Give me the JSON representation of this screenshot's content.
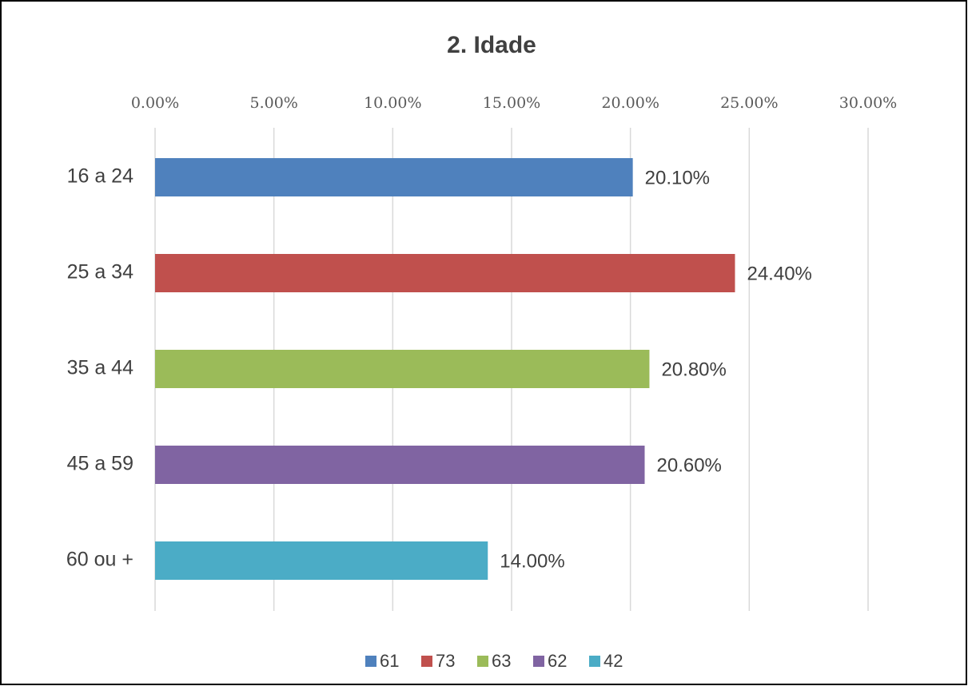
{
  "chart_data": {
    "type": "bar",
    "orientation": "horizontal",
    "title": "2. Idade",
    "categories": [
      "16 a 24",
      "25 a 34",
      "35 a 44",
      "45 a 59",
      "60 ou +"
    ],
    "series": [
      {
        "name": "61",
        "color": "#4f81bd",
        "values": [
          20.1,
          null,
          null,
          null,
          null
        ],
        "value_labels": [
          "20.10%",
          null,
          null,
          null,
          null
        ]
      },
      {
        "name": "73",
        "color": "#c0504d",
        "values": [
          null,
          24.4,
          null,
          null,
          null
        ],
        "value_labels": [
          null,
          "24.40%",
          null,
          null,
          null
        ]
      },
      {
        "name": "63",
        "color": "#9bbb59",
        "values": [
          null,
          null,
          20.8,
          null,
          null
        ],
        "value_labels": [
          null,
          null,
          "20.80%",
          null,
          null
        ]
      },
      {
        "name": "62",
        "color": "#8064a2",
        "values": [
          null,
          null,
          null,
          20.6,
          null
        ],
        "value_labels": [
          null,
          null,
          null,
          "20.60%",
          null
        ]
      },
      {
        "name": "42",
        "color": "#4bacc6",
        "values": [
          null,
          null,
          null,
          null,
          14.0
        ],
        "value_labels": [
          null,
          null,
          null,
          null,
          "14.00%"
        ]
      }
    ],
    "xlim": [
      0,
      30
    ],
    "xticks": [
      {
        "value": 0,
        "label": "0.00%"
      },
      {
        "value": 5,
        "label": "5.00%"
      },
      {
        "value": 10,
        "label": "10.00%"
      },
      {
        "value": 15,
        "label": "15.00%"
      },
      {
        "value": 20,
        "label": "20.00%"
      },
      {
        "value": 25,
        "label": "25.00%"
      },
      {
        "value": 30,
        "label": "30.00%"
      }
    ],
    "grid": true,
    "legend": "bottom"
  }
}
